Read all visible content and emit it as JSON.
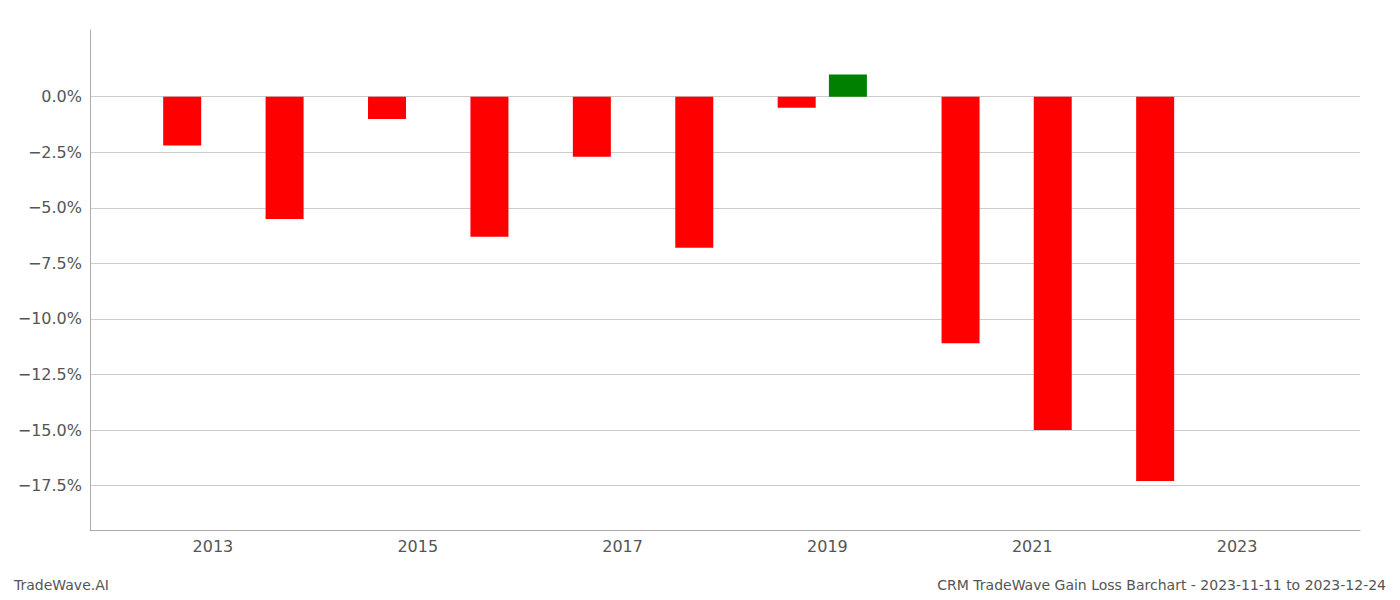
{
  "chart_data": {
    "type": "bar",
    "x": [
      2012.7,
      2013.7,
      2014.7,
      2015.7,
      2016.7,
      2017.7,
      2018.7,
      2019.2,
      2020.3,
      2021.2,
      2022.2
    ],
    "values": [
      -0.022,
      -0.055,
      -0.01,
      -0.063,
      -0.027,
      -0.068,
      -0.005,
      0.01,
      -0.111,
      -0.15,
      -0.173
    ],
    "colors": [
      "red",
      "red",
      "red",
      "red",
      "red",
      "red",
      "red",
      "green",
      "red",
      "red",
      "red"
    ],
    "xlim": [
      2011.8,
      2024.2
    ],
    "xticks": [
      2013,
      2015,
      2017,
      2019,
      2021,
      2023
    ],
    "ylim": [
      -0.195,
      0.03
    ],
    "yticks": [
      {
        "value": 0.0,
        "label": "0.0%"
      },
      {
        "value": -0.025,
        "label": "−2.5%"
      },
      {
        "value": -0.05,
        "label": "−5.0%"
      },
      {
        "value": -0.075,
        "label": "−7.5%"
      },
      {
        "value": -0.1,
        "label": "−10.0%"
      },
      {
        "value": -0.125,
        "label": "−12.5%"
      },
      {
        "value": -0.15,
        "label": "−15.0%"
      },
      {
        "value": -0.175,
        "label": "−17.5%"
      }
    ],
    "grid": "y",
    "annotations": [
      "TradeWave.AI",
      "CRM TradeWave Gain Loss Barchart - 2023-11-11 to 2023-12-24"
    ]
  }
}
